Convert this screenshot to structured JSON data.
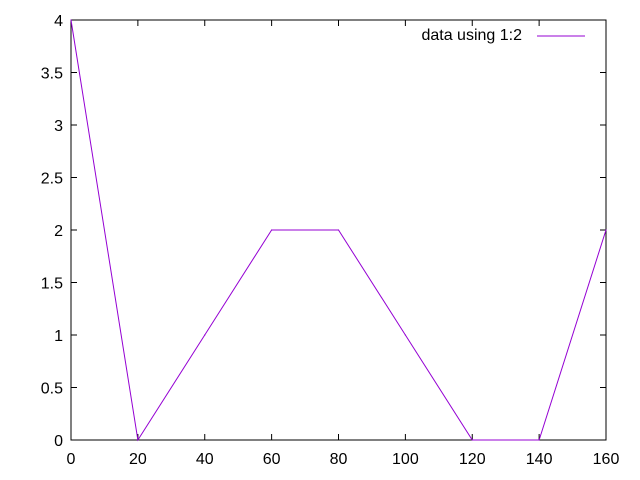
{
  "chart_data": {
    "type": "line",
    "title": "",
    "xlabel": "",
    "ylabel": "",
    "xlim": [
      0,
      160
    ],
    "ylim": [
      0,
      4
    ],
    "x_ticks": [
      {
        "value": 0,
        "label": "0"
      },
      {
        "value": 20,
        "label": "20"
      },
      {
        "value": 40,
        "label": "40"
      },
      {
        "value": 60,
        "label": "60"
      },
      {
        "value": 80,
        "label": "80"
      },
      {
        "value": 100,
        "label": "100"
      },
      {
        "value": 120,
        "label": "120"
      },
      {
        "value": 140,
        "label": "140"
      },
      {
        "value": 160,
        "label": "160"
      }
    ],
    "y_ticks": [
      {
        "value": 0,
        "label": "0"
      },
      {
        "value": 0.5,
        "label": "0.5"
      },
      {
        "value": 1,
        "label": "1"
      },
      {
        "value": 1.5,
        "label": "1.5"
      },
      {
        "value": 2,
        "label": "2"
      },
      {
        "value": 2.5,
        "label": "2.5"
      },
      {
        "value": 3,
        "label": "3"
      },
      {
        "value": 3.5,
        "label": "3.5"
      },
      {
        "value": 4,
        "label": "4"
      }
    ],
    "grid": false,
    "legend_position": "top-right",
    "series": [
      {
        "name": "data using 1:2",
        "color": "#9400d3",
        "x": [
          0,
          20,
          40,
          60,
          80,
          100,
          120,
          140,
          160
        ],
        "y": [
          4,
          0,
          1,
          2,
          2,
          1,
          0,
          0,
          2
        ]
      }
    ]
  }
}
